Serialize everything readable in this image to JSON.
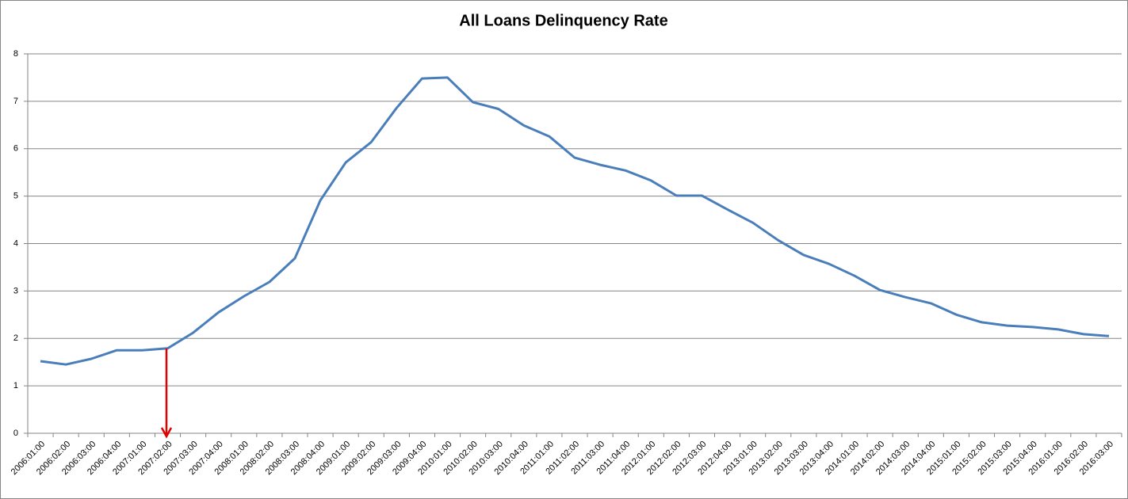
{
  "chart_data": {
    "type": "line",
    "title": "All Loans Delinquency Rate",
    "categories": [
      "2006:01:00",
      "2006:02:00",
      "2006:03:00",
      "2006:04:00",
      "2007:01:00",
      "2007:02:00",
      "2007:03:00",
      "2007:04:00",
      "2008:01:00",
      "2008:02:00",
      "2008:03:00",
      "2008:04:00",
      "2009:01:00",
      "2009:02:00",
      "2009:03:00",
      "2009:04:00",
      "2010:01:00",
      "2010:02:00",
      "2010:03:00",
      "2010:04:00",
      "2011:01:00",
      "2011:02:00",
      "2011:03:00",
      "2011:04:00",
      "2012:01:00",
      "2012:02:00",
      "2012:03:00",
      "2012:04:00",
      "2013:01:00",
      "2013:02:00",
      "2013:03:00",
      "2013:04:00",
      "2014:01:00",
      "2014:02:00",
      "2014:03:00",
      "2014:04:00",
      "2015:01:00",
      "2015:02:00",
      "2015:03:00",
      "2015:04:00",
      "2016:01:00",
      "2016:02:00",
      "2016:03:00"
    ],
    "values": [
      1.52,
      1.45,
      1.57,
      1.75,
      1.75,
      1.79,
      2.12,
      2.55,
      2.89,
      3.19,
      3.69,
      4.91,
      5.71,
      6.14,
      6.86,
      7.48,
      7.5,
      6.98,
      6.84,
      6.49,
      6.26,
      5.81,
      5.66,
      5.54,
      5.33,
      5.01,
      5.01,
      4.72,
      4.44,
      4.07,
      3.76,
      3.57,
      3.32,
      3.02,
      2.87,
      2.74,
      2.5,
      2.34,
      2.27,
      2.24,
      2.19,
      2.09,
      2.05
    ],
    "color": "#4a7ebb",
    "ylim": [
      0,
      8
    ],
    "yticks": [
      0,
      1,
      2,
      3,
      4,
      5,
      6,
      7,
      8
    ],
    "grid": true
  }
}
